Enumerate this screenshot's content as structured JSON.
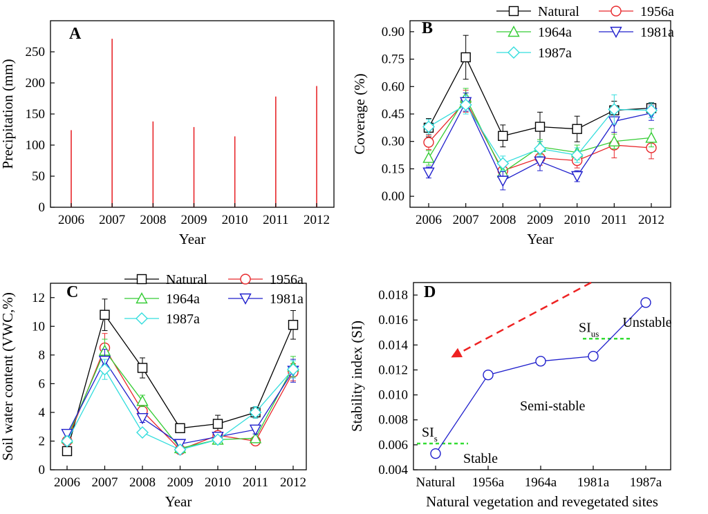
{
  "chart_data": [
    {
      "panel": "A",
      "type": "bar",
      "xlabel": "Year",
      "ylabel": "Precipitation (mm)",
      "categories": [
        "2006",
        "2007",
        "2008",
        "2009",
        "2010",
        "2011",
        "2012"
      ],
      "values": [
        124,
        271,
        138,
        129,
        114,
        178,
        195
      ],
      "ylim": [
        0,
        300
      ],
      "yticks": [
        "0",
        "50",
        "100",
        "150",
        "200",
        "250"
      ],
      "bar_color": "#e8262a"
    },
    {
      "panel": "B",
      "type": "line",
      "xlabel": "Year",
      "ylabel": "Coverage (%)",
      "categories": [
        "2006",
        "2007",
        "2008",
        "2009",
        "2010",
        "2011",
        "2012"
      ],
      "ylim": [
        -0.06,
        0.96
      ],
      "yticks": [
        "0.00",
        "0.15",
        "0.30",
        "0.45",
        "0.60",
        "0.75",
        "0.90"
      ],
      "legend_position": "top-right",
      "series": [
        {
          "name": "Natural",
          "marker": "square",
          "color": "#000000",
          "values": [
            0.375,
            0.76,
            0.33,
            0.38,
            0.368,
            0.47,
            0.482
          ],
          "errors": [
            0.05,
            0.12,
            0.06,
            0.08,
            0.07,
            0.05,
            0.03
          ]
        },
        {
          "name": "1956a",
          "marker": "circle",
          "color": "#e8262a",
          "values": [
            0.295,
            0.52,
            0.14,
            0.21,
            0.195,
            0.28,
            0.265
          ],
          "errors": [
            0.04,
            0.06,
            0.03,
            0.04,
            0.04,
            0.07,
            0.06
          ]
        },
        {
          "name": "1964a",
          "marker": "triangle-up",
          "color": "#33cc33",
          "values": [
            0.21,
            0.54,
            0.13,
            0.27,
            0.24,
            0.3,
            0.32
          ],
          "errors": [
            0.04,
            0.05,
            0.03,
            0.04,
            0.04,
            0.04,
            0.05
          ]
        },
        {
          "name": "1981a",
          "marker": "triangle-down",
          "color": "#1f1fcc",
          "values": [
            0.13,
            0.515,
            0.085,
            0.19,
            0.11,
            0.41,
            0.455
          ],
          "errors": [
            0.03,
            0.05,
            0.05,
            0.05,
            0.03,
            0.06,
            0.04
          ]
        },
        {
          "name": "1987a",
          "marker": "diamond",
          "color": "#33dddd",
          "values": [
            0.38,
            0.5,
            0.18,
            0.26,
            0.225,
            0.475,
            0.47
          ],
          "errors": [
            0.04,
            0.05,
            0.04,
            0.04,
            0.04,
            0.08,
            0.04
          ]
        }
      ]
    },
    {
      "panel": "C",
      "type": "line",
      "xlabel": "Year",
      "ylabel": "Soil water content (VWC,%)",
      "categories": [
        "2006",
        "2007",
        "2008",
        "2009",
        "2010",
        "2011",
        "2012"
      ],
      "ylim": [
        0,
        13
      ],
      "yticks": [
        "0",
        "2",
        "4",
        "6",
        "8",
        "10",
        "12"
      ],
      "legend_position": "top-right",
      "series": [
        {
          "name": "Natural",
          "marker": "square",
          "color": "#000000",
          "values": [
            1.3,
            10.8,
            7.1,
            2.9,
            3.2,
            4.0,
            10.1
          ],
          "errors": [
            0.2,
            1.1,
            0.7,
            0.2,
            0.6,
            0.4,
            1.0
          ]
        },
        {
          "name": "1956a",
          "marker": "circle",
          "color": "#e8262a",
          "values": [
            2.0,
            8.5,
            4.1,
            1.4,
            2.4,
            2.0,
            6.8
          ],
          "errors": [
            0.3,
            1.0,
            0.4,
            0.2,
            0.3,
            0.2,
            0.6
          ]
        },
        {
          "name": "1964a",
          "marker": "triangle-up",
          "color": "#33cc33",
          "values": [
            2.2,
            8.3,
            4.8,
            1.5,
            2.1,
            2.2,
            7.2
          ],
          "errors": [
            0.3,
            0.8,
            0.4,
            0.2,
            0.2,
            0.3,
            0.7
          ]
        },
        {
          "name": "1981a",
          "marker": "triangle-down",
          "color": "#1f1fcc",
          "values": [
            2.5,
            7.6,
            3.6,
            1.8,
            2.3,
            2.8,
            6.9
          ],
          "errors": [
            0.3,
            0.8,
            0.3,
            0.2,
            0.2,
            0.3,
            0.8
          ]
        },
        {
          "name": "1987a",
          "marker": "diamond",
          "color": "#33dddd",
          "values": [
            2.0,
            7.0,
            2.6,
            1.4,
            2.1,
            4.0,
            7.0
          ],
          "errors": [
            0.3,
            0.7,
            0.2,
            0.2,
            0.2,
            0.4,
            0.6
          ]
        }
      ]
    },
    {
      "panel": "D",
      "type": "line",
      "xlabel": "Natural vegetation and revegetated sites",
      "ylabel": "Stability index (SI)",
      "categories": [
        "Natural",
        "1956a",
        "1964a",
        "1981a",
        "1987a"
      ],
      "values": [
        0.0053,
        0.0116,
        0.0127,
        0.0131,
        0.0174
      ],
      "ylim": [
        0.004,
        0.019
      ],
      "yticks": [
        "0.004",
        "0.006",
        "0.008",
        "0.010",
        "0.012",
        "0.014",
        "0.016",
        "0.018"
      ],
      "color": "#1f1fcc",
      "thresholds": [
        {
          "label": "SI",
          "subscript": "s",
          "value": 0.0061,
          "color": "#33dd33"
        },
        {
          "label": "SI",
          "subscript": "us",
          "value": 0.0145,
          "color": "#33dd33"
        }
      ],
      "annotations": [
        "Stable",
        "Semi-stable",
        "Unstable"
      ],
      "arrow_color": "#ee2222"
    }
  ]
}
